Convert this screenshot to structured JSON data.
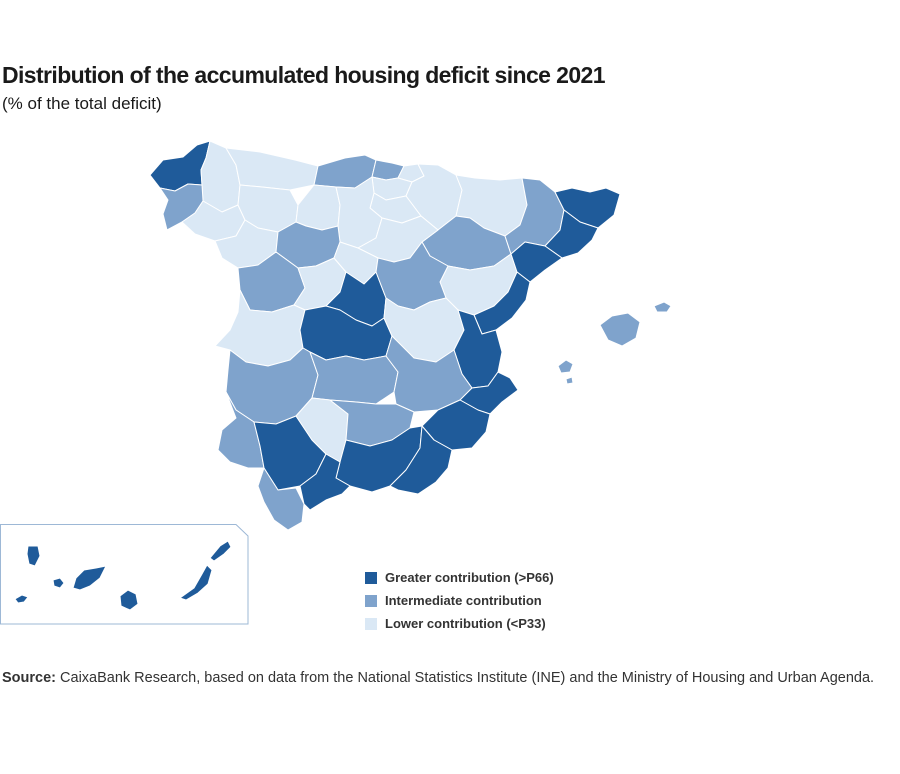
{
  "title": "Distribution of the accumulated housing deficit since 2021",
  "subtitle": "(% of the total deficit)",
  "legend": [
    {
      "key": "high",
      "label": "Greater contribution (>P66)",
      "color": "#1f5b9a"
    },
    {
      "key": "mid",
      "label": "Intermediate contribution",
      "color": "#7fa3cc"
    },
    {
      "key": "low",
      "label": "Lower contribution (<P33)",
      "color": "#dae8f5"
    }
  ],
  "source": {
    "label": "Source:",
    "text": "CaixaBank Research, based on data from the National Statistics Institute (INE) and the Ministry of Housing and Urban Agenda."
  },
  "colors": {
    "border": "#ffffff",
    "inset_frame": "#9db8d6"
  },
  "provinces": [
    {
      "name": "A Coruña",
      "category": "high"
    },
    {
      "name": "Lugo",
      "category": "low"
    },
    {
      "name": "Pontevedra",
      "category": "mid"
    },
    {
      "name": "Ourense",
      "category": "low"
    },
    {
      "name": "Asturias",
      "category": "low"
    },
    {
      "name": "Cantabria",
      "category": "mid"
    },
    {
      "name": "Bizkaia",
      "category": "mid"
    },
    {
      "name": "Gipuzkoa",
      "category": "low"
    },
    {
      "name": "Álava",
      "category": "low"
    },
    {
      "name": "Navarra",
      "category": "low"
    },
    {
      "name": "La Rioja",
      "category": "low"
    },
    {
      "name": "Huesca",
      "category": "low"
    },
    {
      "name": "Zaragoza",
      "category": "mid"
    },
    {
      "name": "Teruel",
      "category": "low"
    },
    {
      "name": "Lleida",
      "category": "mid"
    },
    {
      "name": "Girona",
      "category": "high"
    },
    {
      "name": "Barcelona",
      "category": "high"
    },
    {
      "name": "Tarragona",
      "category": "high"
    },
    {
      "name": "León",
      "category": "low"
    },
    {
      "name": "Palencia",
      "category": "low"
    },
    {
      "name": "Burgos",
      "category": "low"
    },
    {
      "name": "Zamora",
      "category": "low"
    },
    {
      "name": "Valladolid",
      "category": "mid"
    },
    {
      "name": "Soria",
      "category": "low"
    },
    {
      "name": "Salamanca",
      "category": "mid"
    },
    {
      "name": "Ávila",
      "category": "low"
    },
    {
      "name": "Segovia",
      "category": "low"
    },
    {
      "name": "Madrid",
      "category": "high"
    },
    {
      "name": "Guadalajara",
      "category": "mid"
    },
    {
      "name": "Cáceres",
      "category": "low"
    },
    {
      "name": "Toledo",
      "category": "high"
    },
    {
      "name": "Cuenca",
      "category": "low"
    },
    {
      "name": "Castellón",
      "category": "high"
    },
    {
      "name": "Valencia",
      "category": "high"
    },
    {
      "name": "Badajoz",
      "category": "mid"
    },
    {
      "name": "Ciudad Real",
      "category": "mid"
    },
    {
      "name": "Albacete",
      "category": "mid"
    },
    {
      "name": "Alicante",
      "category": "high"
    },
    {
      "name": "Murcia",
      "category": "high"
    },
    {
      "name": "Huelva",
      "category": "mid"
    },
    {
      "name": "Sevilla",
      "category": "high"
    },
    {
      "name": "Córdoba",
      "category": "low"
    },
    {
      "name": "Jaén",
      "category": "mid"
    },
    {
      "name": "Granada",
      "category": "high"
    },
    {
      "name": "Almería",
      "category": "high"
    },
    {
      "name": "Cádiz",
      "category": "mid"
    },
    {
      "name": "Málaga",
      "category": "high"
    },
    {
      "name": "Mallorca",
      "category": "mid"
    },
    {
      "name": "Menorca",
      "category": "mid"
    },
    {
      "name": "Ibiza",
      "category": "mid"
    },
    {
      "name": "Formentera",
      "category": "mid"
    },
    {
      "name": "La Palma",
      "category": "high"
    },
    {
      "name": "La Gomera",
      "category": "high"
    },
    {
      "name": "El Hierro",
      "category": "high"
    },
    {
      "name": "Tenerife",
      "category": "high"
    },
    {
      "name": "Gran Canaria",
      "category": "high"
    },
    {
      "name": "Fuerteventura",
      "category": "high"
    },
    {
      "name": "Lanzarote",
      "category": "high"
    }
  ]
}
